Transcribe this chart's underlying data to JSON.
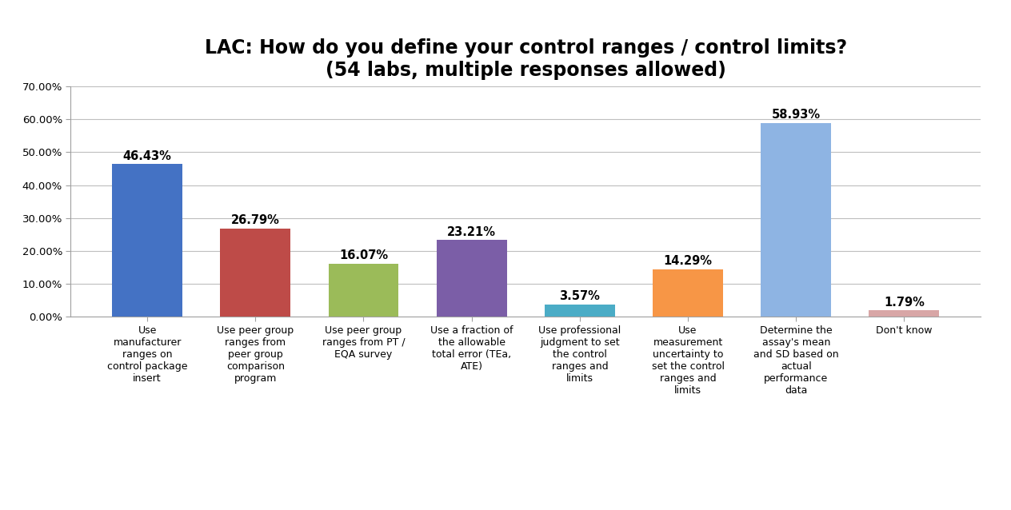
{
  "title": "LAC: How do you define your control ranges / control limits?\n(54 labs, multiple responses allowed)",
  "categories": [
    "Use\nmanufacturer\nranges on\ncontrol package\ninsert",
    "Use peer group\nranges from\npeer group\ncomparison\nprogram",
    "Use peer group\nranges from PT /\nEQA survey",
    "Use a fraction of\nthe allowable\ntotal error (TEa,\nATE)",
    "Use professional\njudgment to set\nthe control\nranges and\nlimits",
    "Use\nmeasurement\nuncertainty to\nset the control\nranges and\nlimits",
    "Determine the\nassay's mean\nand SD based on\nactual\nperformance\ndata",
    "Don't know"
  ],
  "values": [
    46.43,
    26.79,
    16.07,
    23.21,
    3.57,
    14.29,
    58.93,
    1.79
  ],
  "labels": [
    "46.43%",
    "26.79%",
    "16.07%",
    "23.21%",
    "3.57%",
    "14.29%",
    "58.93%",
    "1.79%"
  ],
  "colors": [
    "#4472C4",
    "#BE4B48",
    "#9BBB59",
    "#7B5EA7",
    "#4BACC6",
    "#F79646",
    "#8EB4E3",
    "#D8A6A6"
  ],
  "ylim": [
    0,
    70
  ],
  "yticks": [
    0,
    10,
    20,
    30,
    40,
    50,
    60,
    70
  ],
  "ytick_labels": [
    "0.00%",
    "10.00%",
    "20.00%",
    "30.00%",
    "40.00%",
    "50.00%",
    "60.00%",
    "70.00%"
  ],
  "title_fontsize": 17,
  "label_fontsize": 10.5,
  "tick_fontsize": 9.5,
  "xtick_fontsize": 9,
  "background_color": "#FFFFFF",
  "grid_color": "#BEBEBE"
}
